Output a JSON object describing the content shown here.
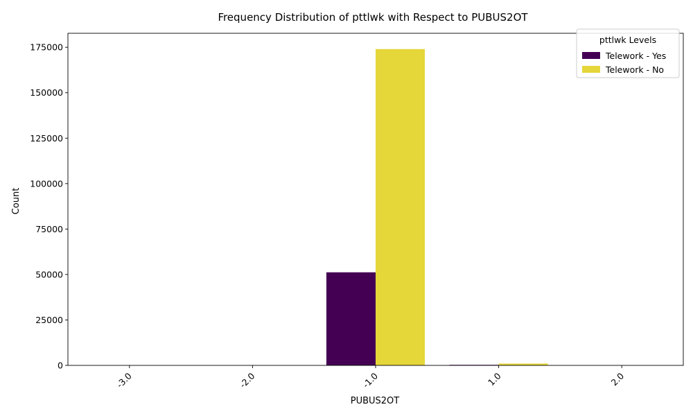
{
  "chart_data": {
    "type": "bar",
    "title": "Frequency Distribution of pttlwk with Respect to PUBUS2OT",
    "xlabel": "PUBUS2OT",
    "ylabel": "Count",
    "categories": [
      "-3.0",
      "-2.0",
      "-1.0",
      "1.0",
      "2.0"
    ],
    "ylim": [
      0,
      182700
    ],
    "yticks": [
      0,
      25000,
      50000,
      75000,
      100000,
      125000,
      150000,
      175000
    ],
    "grid": false,
    "legend": {
      "title": "pttlwk Levels",
      "position": "top-right"
    },
    "series": [
      {
        "name": "Telework - Yes",
        "color": "#440154",
        "values": [
          0,
          0,
          51200,
          300,
          0
        ]
      },
      {
        "name": "Telework - No",
        "color": "#e5d63a",
        "values": [
          0,
          0,
          174000,
          1000,
          0
        ]
      }
    ]
  }
}
